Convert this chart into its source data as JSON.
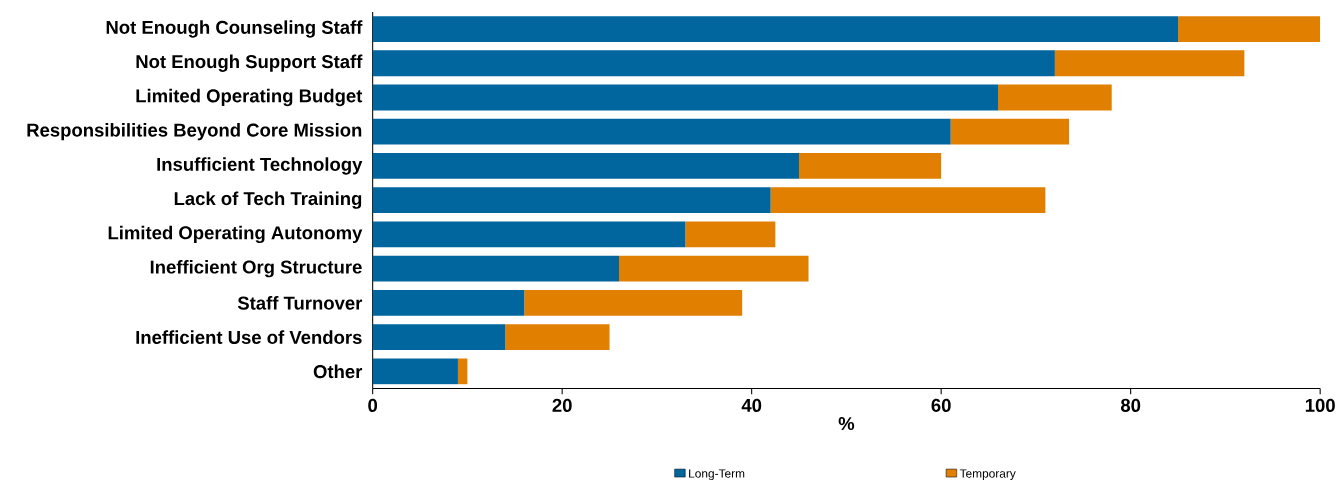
{
  "chart_data": {
    "type": "bar",
    "orientation": "horizontal",
    "stacked": true,
    "xlabel": "%",
    "categories": [
      "Not Enough Counseling Staff",
      "Not Enough Support Staff",
      "Limited Operating Budget",
      "Responsibilities Beyond Core Mission",
      "Insufficient Technology",
      "Lack of Tech Training",
      "Limited Operating Autonomy",
      "Inefficient Org Structure",
      "Staff Turnover",
      "Inefficient Use of Vendors",
      "Other"
    ],
    "series": [
      {
        "name": "Long-Term",
        "color": "#01669e",
        "values": [
          85,
          72,
          66,
          61,
          45,
          42,
          33,
          26,
          16,
          14,
          9
        ]
      },
      {
        "name": "Temporary",
        "color": "#e17f00",
        "values": [
          15,
          20,
          12,
          12.5,
          15,
          29,
          9.5,
          20,
          23,
          11,
          1
        ]
      }
    ],
    "xlim": [
      0,
      100
    ],
    "xticks": [
      0,
      20,
      40,
      60,
      80,
      100
    ],
    "grid": false,
    "legend": "bottom"
  }
}
